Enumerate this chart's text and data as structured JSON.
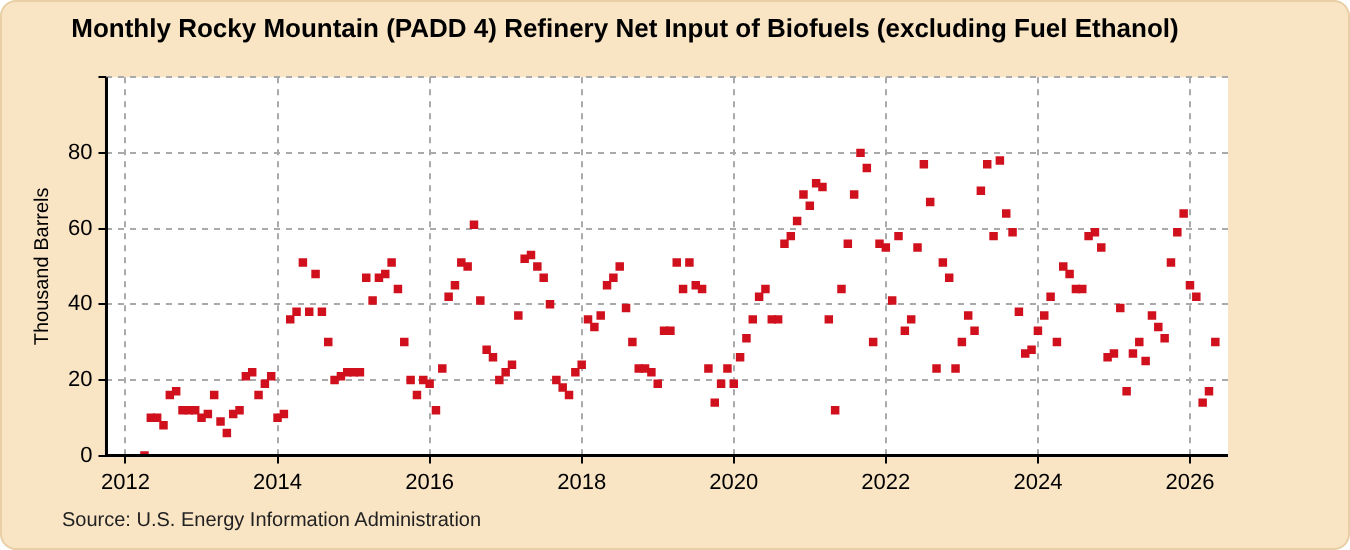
{
  "chart_data": {
    "type": "scatter",
    "title": "Monthly Rocky Mountain (PADD 4) Refinery Net Input of Biofuels (excluding Fuel Ethanol)",
    "ylabel": "Thousand Barrels",
    "annotations": [
      "Source: U.S. Energy Information Administration"
    ],
    "x": [
      "2012-04",
      "2012-05",
      "2012-06",
      "2012-07",
      "2012-08",
      "2012-09",
      "2012-10",
      "2012-11",
      "2012-12",
      "2013-01",
      "2013-02",
      "2013-03",
      "2013-04",
      "2013-05",
      "2013-06",
      "2013-07",
      "2013-08",
      "2013-09",
      "2013-10",
      "2013-11",
      "2013-12",
      "2014-01",
      "2014-02",
      "2014-03",
      "2014-04",
      "2014-05",
      "2014-06",
      "2014-07",
      "2014-08",
      "2014-09",
      "2014-10",
      "2014-11",
      "2014-12",
      "2015-01",
      "2015-02",
      "2015-03",
      "2015-04",
      "2015-05",
      "2015-06",
      "2015-07",
      "2015-08",
      "2015-09",
      "2015-10",
      "2015-11",
      "2015-12",
      "2016-01",
      "2016-02",
      "2016-03",
      "2016-04",
      "2016-05",
      "2016-06",
      "2016-07",
      "2016-08",
      "2016-09",
      "2016-10",
      "2016-11",
      "2016-12",
      "2017-01",
      "2017-02",
      "2017-03",
      "2017-04",
      "2017-05",
      "2017-06",
      "2017-07",
      "2017-08",
      "2017-09",
      "2017-10",
      "2017-11",
      "2017-12",
      "2018-01",
      "2018-02",
      "2018-03",
      "2018-04",
      "2018-05",
      "2018-06",
      "2018-07",
      "2018-08",
      "2018-09",
      "2018-10",
      "2018-11",
      "2018-12",
      "2019-01",
      "2019-02",
      "2019-03",
      "2019-04",
      "2019-05",
      "2019-06",
      "2019-07",
      "2019-08",
      "2019-09",
      "2019-10",
      "2019-11",
      "2019-12",
      "2020-01",
      "2020-02",
      "2020-03",
      "2020-04",
      "2020-05",
      "2020-06",
      "2020-07",
      "2020-08",
      "2020-09",
      "2020-10",
      "2020-11",
      "2020-12",
      "2021-01",
      "2021-02",
      "2021-03",
      "2021-04",
      "2021-05",
      "2021-06",
      "2021-07",
      "2021-08",
      "2021-09",
      "2021-10",
      "2021-11",
      "2021-12",
      "2022-01",
      "2022-02",
      "2022-03",
      "2022-04",
      "2022-05",
      "2022-06",
      "2022-07",
      "2022-08",
      "2022-09",
      "2022-10",
      "2022-11",
      "2022-12",
      "2023-01",
      "2023-02",
      "2023-03",
      "2023-04",
      "2023-05",
      "2023-06",
      "2023-07",
      "2023-08",
      "2023-09",
      "2023-10",
      "2023-11",
      "2023-12",
      "2024-01",
      "2024-02",
      "2024-03",
      "2024-04",
      "2024-05",
      "2024-06",
      "2024-07",
      "2024-08",
      "2024-09",
      "2024-10",
      "2024-11",
      "2024-12",
      "2025-01",
      "2025-02",
      "2025-03",
      "2025-04",
      "2025-05",
      "2025-06",
      "2025-07",
      "2025-08",
      "2025-09",
      "2025-10",
      "2025-11",
      "2025-12",
      "2026-01",
      "2026-02",
      "2026-03",
      "2026-04",
      "2026-05"
    ],
    "series": [
      {
        "color": "#d0101c",
        "values": [
          0,
          10,
          10,
          8,
          16,
          17,
          12,
          12,
          12,
          10,
          11,
          16,
          9,
          6,
          11,
          12,
          21,
          22,
          16,
          19,
          21,
          10,
          11,
          36,
          38,
          51,
          38,
          48,
          38,
          30,
          20,
          21,
          22,
          22,
          22,
          47,
          41,
          47,
          48,
          51,
          44,
          30,
          20,
          16,
          20,
          19,
          12,
          23,
          42,
          45,
          51,
          50,
          61,
          41,
          28,
          26,
          20,
          22,
          24,
          37,
          52,
          53,
          50,
          47,
          40,
          20,
          18,
          16,
          22,
          24,
          36,
          34,
          37,
          45,
          47,
          50,
          39,
          30,
          23,
          23,
          22,
          19,
          33,
          33,
          51,
          44,
          51,
          45,
          44,
          23,
          14,
          19,
          23,
          19,
          26,
          31,
          36,
          42,
          44,
          36,
          36,
          56,
          58,
          62,
          69,
          66,
          72,
          71,
          36,
          12,
          44,
          56,
          69,
          80,
          76,
          30,
          56,
          55,
          41,
          58,
          33,
          36,
          55,
          77,
          67,
          23,
          51,
          47,
          23,
          30,
          37,
          33,
          70,
          77,
          58,
          78,
          64,
          59,
          38,
          27,
          28,
          33,
          37,
          42,
          30,
          50,
          48,
          44,
          44,
          58,
          59,
          55,
          26,
          27,
          39,
          17,
          27,
          30,
          25,
          37,
          34,
          31,
          51,
          59,
          64,
          45,
          42,
          14,
          17,
          30
        ]
      }
    ],
    "xlim": [
      "2011-10",
      "2026-07"
    ],
    "xticks": [
      "2012",
      "2014",
      "2016",
      "2018",
      "2020",
      "2022",
      "2024",
      "2026"
    ],
    "ylim": [
      0,
      100
    ],
    "yticks": [
      0,
      20,
      40,
      60,
      80,
      {
        "value": 100,
        "label": null
      }
    ],
    "grid": true,
    "legend": false,
    "marker": "square"
  }
}
